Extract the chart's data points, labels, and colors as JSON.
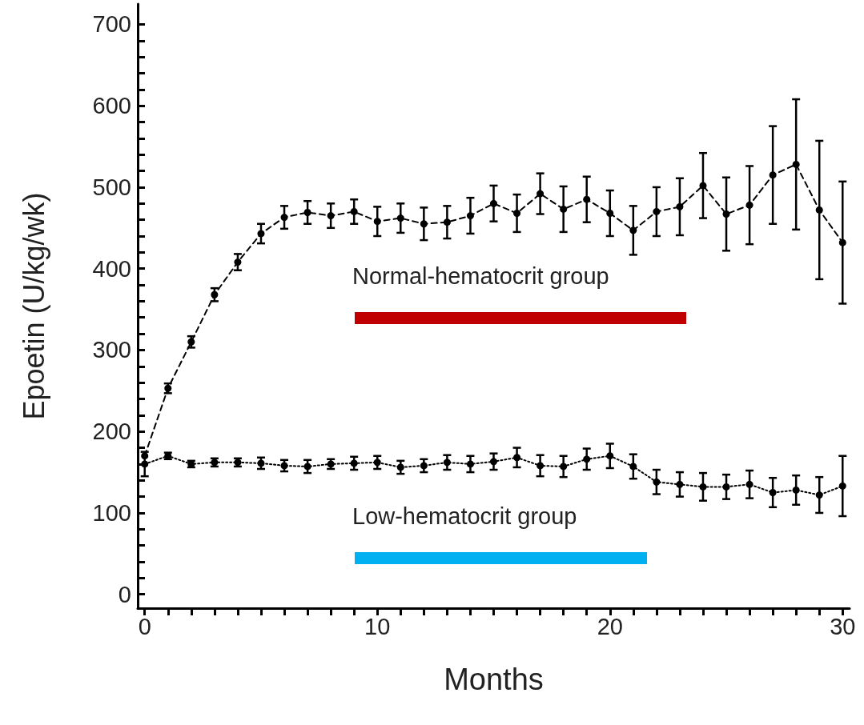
{
  "chart_data": {
    "type": "line",
    "xlabel": "Months",
    "ylabel": "Epoetin (U/kg/wk)",
    "x": [
      0,
      1,
      2,
      3,
      4,
      5,
      6,
      7,
      8,
      9,
      10,
      11,
      12,
      13,
      14,
      15,
      16,
      17,
      18,
      19,
      20,
      21,
      22,
      23,
      24,
      25,
      26,
      27,
      28,
      29,
      30
    ],
    "series": [
      {
        "name": "Normal-hematocrit group",
        "color": "#000000",
        "line_style": "dashed",
        "values": [
          170,
          253,
          310,
          368,
          408,
          443,
          463,
          469,
          465,
          470,
          458,
          462,
          455,
          457,
          465,
          480,
          468,
          492,
          473,
          485,
          468,
          447,
          470,
          476,
          502,
          467,
          478,
          515,
          528,
          472,
          432
        ],
        "errors": [
          null,
          6,
          7,
          8,
          10,
          12,
          14,
          14,
          15,
          15,
          18,
          18,
          20,
          20,
          22,
          22,
          23,
          25,
          28,
          28,
          28,
          30,
          30,
          35,
          40,
          45,
          48,
          60,
          80,
          85,
          75
        ]
      },
      {
        "name": "Low-hematocrit group",
        "color": "#000000",
        "line_style": "dotted",
        "values": [
          160,
          170,
          160,
          162,
          162,
          161,
          158,
          157,
          160,
          161,
          162,
          156,
          158,
          162,
          160,
          163,
          168,
          158,
          157,
          166,
          170,
          157,
          138,
          135,
          132,
          132,
          135,
          125,
          128,
          122,
          133
        ],
        "errors": [
          15,
          4,
          4,
          5,
          5,
          7,
          7,
          8,
          6,
          8,
          8,
          8,
          8,
          9,
          10,
          10,
          12,
          13,
          13,
          13,
          15,
          15,
          15,
          15,
          17,
          15,
          17,
          18,
          18,
          22,
          37
        ]
      }
    ],
    "xlim": [
      -0.3,
      30.3
    ],
    "xticks": [
      0,
      {
        "value": 1,
        "label": null
      },
      {
        "value": 2,
        "label": null
      },
      {
        "value": 3,
        "label": null
      },
      {
        "value": 4,
        "label": null
      },
      {
        "value": 5,
        "label": null
      },
      {
        "value": 6,
        "label": null
      },
      {
        "value": 7,
        "label": null
      },
      {
        "value": 8,
        "label": null
      },
      {
        "value": 9,
        "label": null
      },
      10,
      {
        "value": 11,
        "label": null
      },
      {
        "value": 12,
        "label": null
      },
      {
        "value": 13,
        "label": null
      },
      {
        "value": 14,
        "label": null
      },
      {
        "value": 15,
        "label": null
      },
      {
        "value": 16,
        "label": null
      },
      {
        "value": 17,
        "label": null
      },
      {
        "value": 18,
        "label": null
      },
      {
        "value": 19,
        "label": null
      },
      20,
      {
        "value": 21,
        "label": null
      },
      {
        "value": 22,
        "label": null
      },
      {
        "value": 23,
        "label": null
      },
      {
        "value": 24,
        "label": null
      },
      {
        "value": 25,
        "label": null
      },
      {
        "value": 26,
        "label": null
      },
      {
        "value": 27,
        "label": null
      },
      {
        "value": 28,
        "label": null
      },
      {
        "value": 29,
        "label": null
      },
      30
    ],
    "ylim": [
      -17,
      725
    ],
    "yticks": [
      0,
      {
        "value": 20,
        "label": null
      },
      {
        "value": 40,
        "label": null
      },
      {
        "value": 60,
        "label": null
      },
      {
        "value": 80,
        "label": null
      },
      100,
      {
        "value": 120,
        "label": null
      },
      {
        "value": 140,
        "label": null
      },
      {
        "value": 160,
        "label": null
      },
      {
        "value": 180,
        "label": null
      },
      200,
      {
        "value": 220,
        "label": null
      },
      {
        "value": 240,
        "label": null
      },
      {
        "value": 260,
        "label": null
      },
      {
        "value": 280,
        "label": null
      },
      300,
      {
        "value": 320,
        "label": null
      },
      {
        "value": 340,
        "label": null
      },
      {
        "value": 360,
        "label": null
      },
      {
        "value": 380,
        "label": null
      },
      400,
      {
        "value": 420,
        "label": null
      },
      {
        "value": 440,
        "label": null
      },
      {
        "value": 460,
        "label": null
      },
      {
        "value": 480,
        "label": null
      },
      500,
      {
        "value": 520,
        "label": null
      },
      {
        "value": 540,
        "label": null
      },
      {
        "value": 560,
        "label": null
      },
      {
        "value": 580,
        "label": null
      },
      600,
      {
        "value": 620,
        "label": null
      },
      {
        "value": 640,
        "label": null
      },
      {
        "value": 660,
        "label": null
      },
      {
        "value": 680,
        "label": null
      },
      700
    ],
    "grid": false,
    "legend": false,
    "marker": "circle"
  }
}
